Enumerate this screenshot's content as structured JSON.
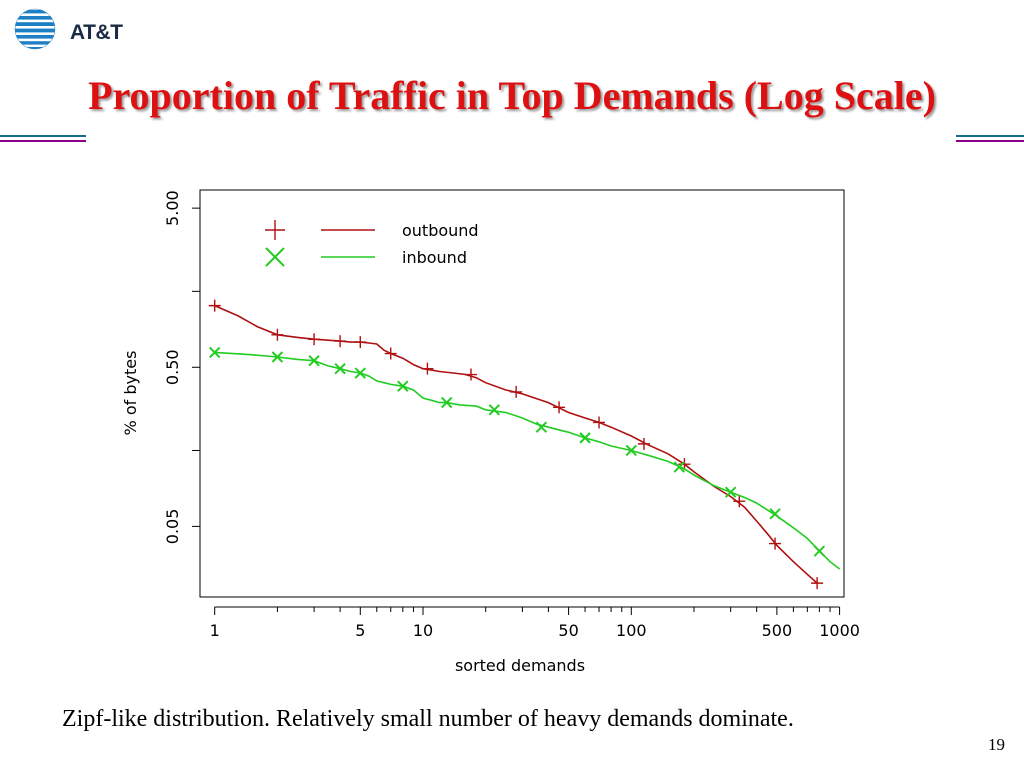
{
  "header": {
    "logo_text": "AT&T",
    "logo_icon": "att-globe-icon",
    "title": "Proportion of Traffic in Top Demands (Log Scale)"
  },
  "colors": {
    "title": "#dd1111",
    "rule_top": "#1a6a8a",
    "rule_bottom": "#880088",
    "outbound": "#b01010",
    "inbound": "#22cc22"
  },
  "chart_data": {
    "type": "line",
    "xlabel": "sorted demands",
    "ylabel": "% of bytes",
    "x_scale": "log",
    "y_scale": "log",
    "xlim": [
      0.85,
      1050
    ],
    "ylim": [
      0.018,
      6.5
    ],
    "x_ticks": [
      1,
      5,
      10,
      50,
      100,
      500,
      1000
    ],
    "x_tick_labels": [
      "1",
      "5",
      "10",
      "50",
      "100",
      "500",
      "1000"
    ],
    "x_minor_ticks": [
      2,
      3,
      4,
      6,
      7,
      8,
      9,
      20,
      30,
      40,
      60,
      70,
      80,
      90,
      200,
      300,
      400,
      600,
      700,
      800,
      900
    ],
    "y_ticks": [
      5.0,
      1.5,
      0.5,
      0.15,
      0.05
    ],
    "y_tick_labels": [
      "5.00",
      "",
      "0.50",
      "",
      "0.05"
    ],
    "legend": {
      "position": "top-left",
      "show": true
    },
    "grid": false,
    "series": [
      {
        "name": "outbound",
        "marker": "plus",
        "points": [
          [
            1,
            1.22
          ],
          [
            1.3,
            1.05
          ],
          [
            1.6,
            0.9
          ],
          [
            2,
            0.8
          ],
          [
            2.5,
            0.77
          ],
          [
            3,
            0.75
          ],
          [
            3.5,
            0.74
          ],
          [
            4,
            0.73
          ],
          [
            4.5,
            0.72
          ],
          [
            5,
            0.72
          ],
          [
            5.5,
            0.71
          ],
          [
            6,
            0.7
          ],
          [
            6.5,
            0.64
          ],
          [
            7,
            0.61
          ],
          [
            8,
            0.57
          ],
          [
            9,
            0.52
          ],
          [
            10,
            0.49
          ],
          [
            11,
            0.48
          ],
          [
            12,
            0.47
          ],
          [
            14,
            0.46
          ],
          [
            16,
            0.45
          ],
          [
            18,
            0.43
          ],
          [
            20,
            0.4
          ],
          [
            25,
            0.36
          ],
          [
            30,
            0.34
          ],
          [
            40,
            0.3
          ],
          [
            50,
            0.26
          ],
          [
            60,
            0.24
          ],
          [
            70,
            0.225
          ],
          [
            80,
            0.21
          ],
          [
            100,
            0.185
          ],
          [
            120,
            0.163
          ],
          [
            150,
            0.143
          ],
          [
            180,
            0.123
          ],
          [
            200,
            0.11
          ],
          [
            250,
            0.089
          ],
          [
            300,
            0.077
          ],
          [
            350,
            0.066
          ],
          [
            400,
            0.054
          ],
          [
            450,
            0.045
          ],
          [
            500,
            0.038
          ],
          [
            600,
            0.03
          ],
          [
            700,
            0.025
          ],
          [
            780,
            0.022
          ]
        ],
        "marker_points": [
          [
            1,
            1.22
          ],
          [
            2,
            0.8
          ],
          [
            3,
            0.75
          ],
          [
            4,
            0.73
          ],
          [
            5,
            0.72
          ],
          [
            7,
            0.61
          ],
          [
            10.5,
            0.49
          ],
          [
            17,
            0.45
          ],
          [
            28,
            0.35
          ],
          [
            45,
            0.28
          ],
          [
            70,
            0.225
          ],
          [
            115,
            0.165
          ],
          [
            180,
            0.123
          ],
          [
            330,
            0.072
          ],
          [
            490,
            0.039
          ],
          [
            780,
            0.022
          ]
        ]
      },
      {
        "name": "inbound",
        "marker": "cross",
        "points": [
          [
            1,
            0.62
          ],
          [
            1.5,
            0.6
          ],
          [
            2,
            0.58
          ],
          [
            2.5,
            0.56
          ],
          [
            3,
            0.55
          ],
          [
            3.5,
            0.51
          ],
          [
            4,
            0.49
          ],
          [
            4.5,
            0.47
          ],
          [
            5,
            0.46
          ],
          [
            5.5,
            0.44
          ],
          [
            6,
            0.41
          ],
          [
            6.5,
            0.4
          ],
          [
            7,
            0.39
          ],
          [
            8,
            0.38
          ],
          [
            9,
            0.36
          ],
          [
            10,
            0.32
          ],
          [
            11,
            0.31
          ],
          [
            12,
            0.3
          ],
          [
            13,
            0.3
          ],
          [
            15,
            0.29
          ],
          [
            18,
            0.285
          ],
          [
            20,
            0.27
          ],
          [
            25,
            0.26
          ],
          [
            30,
            0.24
          ],
          [
            35,
            0.22
          ],
          [
            40,
            0.21
          ],
          [
            50,
            0.195
          ],
          [
            60,
            0.18
          ],
          [
            70,
            0.17
          ],
          [
            80,
            0.16
          ],
          [
            100,
            0.15
          ],
          [
            120,
            0.14
          ],
          [
            150,
            0.128
          ],
          [
            180,
            0.115
          ],
          [
            200,
            0.105
          ],
          [
            250,
            0.09
          ],
          [
            300,
            0.082
          ],
          [
            350,
            0.076
          ],
          [
            400,
            0.07
          ],
          [
            500,
            0.058
          ],
          [
            600,
            0.049
          ],
          [
            700,
            0.042
          ],
          [
            800,
            0.035
          ],
          [
            900,
            0.03
          ],
          [
            1000,
            0.027
          ]
        ],
        "marker_points": [
          [
            1,
            0.62
          ],
          [
            2,
            0.58
          ],
          [
            3,
            0.55
          ],
          [
            4,
            0.49
          ],
          [
            5,
            0.46
          ],
          [
            8,
            0.38
          ],
          [
            13,
            0.3
          ],
          [
            22,
            0.27
          ],
          [
            37,
            0.21
          ],
          [
            60,
            0.18
          ],
          [
            100,
            0.15
          ],
          [
            170,
            0.118
          ],
          [
            300,
            0.082
          ],
          [
            490,
            0.06
          ],
          [
            800,
            0.035
          ]
        ]
      }
    ]
  },
  "caption": "Zipf-like distribution. Relatively small number of heavy demands dominate.",
  "page_number": "19"
}
